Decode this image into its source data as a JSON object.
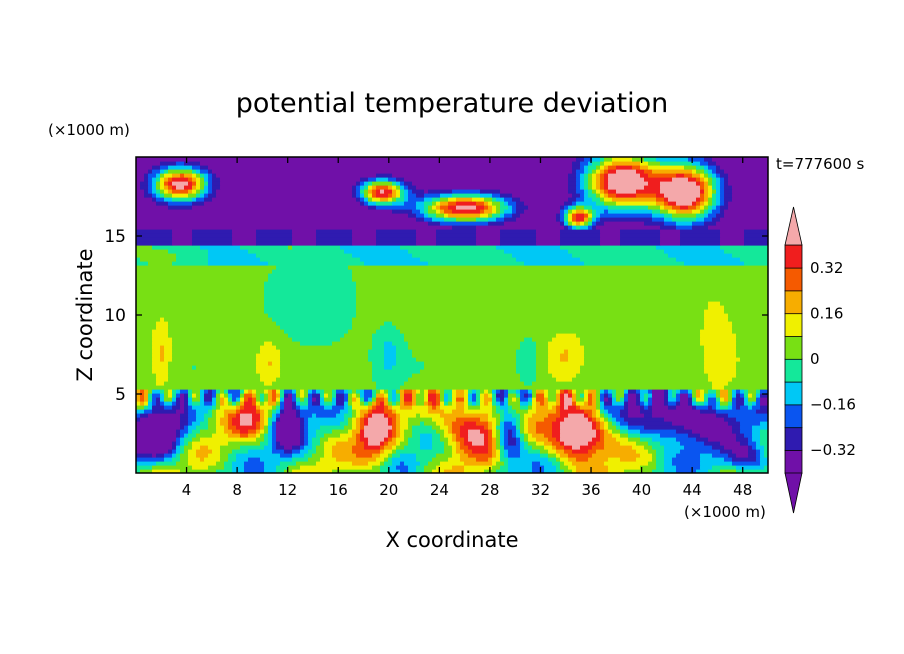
{
  "chart_data": {
    "type": "heatmap",
    "title": "potential temperature deviation",
    "xlabel": "X coordinate",
    "ylabel": "Z coordinate",
    "x_unit": "(×1000 m)",
    "y_unit": "(×1000 m)",
    "time_label": "t=777600 s",
    "xlim": [
      0,
      50
    ],
    "ylim": [
      0,
      20
    ],
    "x_ticks": [
      4,
      8,
      12,
      16,
      20,
      24,
      28,
      32,
      36,
      40,
      44,
      48
    ],
    "y_ticks": [
      5,
      10,
      15
    ],
    "colorbar": {
      "levels": [
        -0.4,
        -0.32,
        -0.24,
        -0.16,
        -0.08,
        0,
        0.08,
        0.16,
        0.24,
        0.32,
        0.4
      ],
      "labels": [
        "0.32",
        "0.16",
        "0",
        "−0.16",
        "−0.32"
      ],
      "label_values": [
        0.32,
        0.16,
        0,
        -0.16,
        -0.32
      ],
      "colors": [
        "#7010a8",
        "#2f1bb0",
        "#0a55f0",
        "#00c8f5",
        "#14e89a",
        "#78e014",
        "#f0f000",
        "#f7ad00",
        "#f55a00",
        "#f01e1e"
      ],
      "over_color": "#f4a8aa",
      "under_color": "#7010a8"
    },
    "regions": [
      {
        "desc": "upper layer",
        "z_range": [
          15,
          20
        ],
        "dominant_level": "< -0.32",
        "patches_over_0.4": [
          [
            2,
            5
          ],
          [
            17,
            21
          ],
          [
            22,
            30
          ],
          [
            34,
            47
          ]
        ]
      },
      {
        "desc": "stable band",
        "z_range": [
          14.5,
          15.5
        ],
        "dominant_level": "-0.32 to -0.24"
      },
      {
        "desc": "middle layer",
        "z_range": [
          5.5,
          14.5
        ],
        "dominant_level": "-0.08 to 0.08",
        "warm_columns_x": [
          [
            1,
            3
          ],
          [
            9,
            12
          ],
          [
            32,
            36
          ],
          [
            44,
            49
          ]
        ],
        "cool_columns_x": [
          [
            19,
            21
          ],
          [
            30,
            32
          ]
        ]
      },
      {
        "desc": "lower boundary layer",
        "z_range": [
          0,
          5.5
        ],
        "dominant_level": "mixed -0.4 to 0.4",
        "warm_cores_x": [
          [
            18,
            20
          ],
          [
            24,
            28
          ],
          [
            33,
            37
          ]
        ],
        "cold_cores_x": [
          [
            0,
            4
          ],
          [
            11,
            13
          ],
          [
            28,
            30
          ],
          [
            40,
            50
          ]
        ]
      }
    ]
  }
}
